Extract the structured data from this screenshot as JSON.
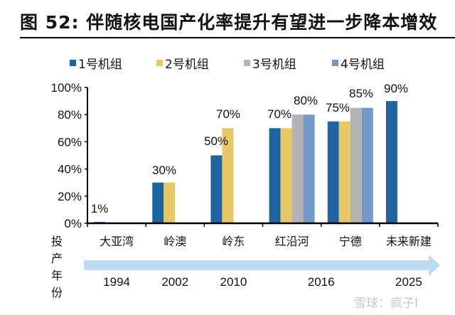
{
  "title": "图  52:  伴随核电国产化率提升有望进一步降本增效",
  "watermark": "雪球：疯子I",
  "chart_data": {
    "type": "bar",
    "title": "图 52: 伴随核电国产化率提升有望进一步降本增效",
    "xlabel": "",
    "ylabel": "",
    "ylim": [
      0,
      100
    ],
    "yticks": [
      "0%",
      "20%",
      "40%",
      "60%",
      "80%",
      "100%"
    ],
    "ytick_values": [
      0,
      20,
      40,
      60,
      80,
      100
    ],
    "grid": false,
    "legend_position": "top",
    "categories": [
      "大亚湾",
      "岭澳",
      "岭东",
      "红沿河",
      "宁德",
      "未来新建"
    ],
    "series": [
      {
        "name": "1号机组",
        "color": "#1f64a0",
        "values": [
          1,
          30,
          50,
          70,
          75,
          90
        ]
      },
      {
        "name": "2号机组",
        "color": "#e8c766",
        "values": [
          null,
          30,
          70,
          70,
          75,
          null
        ]
      },
      {
        "name": "3号机组",
        "color": "#b3b3b3",
        "values": [
          null,
          null,
          null,
          80,
          85,
          null
        ]
      },
      {
        "name": "4号机组",
        "color": "#7499c9",
        "values": [
          null,
          null,
          null,
          80,
          85,
          null
        ]
      }
    ],
    "data_labels": [
      {
        "category": "大亚湾",
        "text": "1%"
      },
      {
        "category": "岭澳",
        "text": "30%"
      },
      {
        "category": "岭东",
        "text": "50%",
        "series": "1号机组"
      },
      {
        "category": "岭东",
        "text": "70%",
        "series": "2号机组"
      },
      {
        "category": "红沿河",
        "text": "70%",
        "series": "1号机组"
      },
      {
        "category": "红沿河",
        "text": "80%",
        "series": "3号机组"
      },
      {
        "category": "宁德",
        "text": "75%",
        "series": "1号机组"
      },
      {
        "category": "宁德",
        "text": "85%",
        "series": "3号机组"
      },
      {
        "category": "未来新建",
        "text": "90%",
        "series": "1号机组"
      }
    ],
    "timeline": {
      "label": "投产年份",
      "arrow_color": "#bddcf2",
      "years": [
        {
          "category": "大亚湾",
          "year": "1994"
        },
        {
          "category": "岭澳",
          "year": "2002"
        },
        {
          "category": "岭东",
          "year": "2010"
        },
        {
          "category": "红沿河",
          "year": "2016",
          "between": [
            "红沿河",
            "宁德"
          ]
        },
        {
          "category": "未来新建",
          "year": "2025"
        }
      ]
    }
  }
}
